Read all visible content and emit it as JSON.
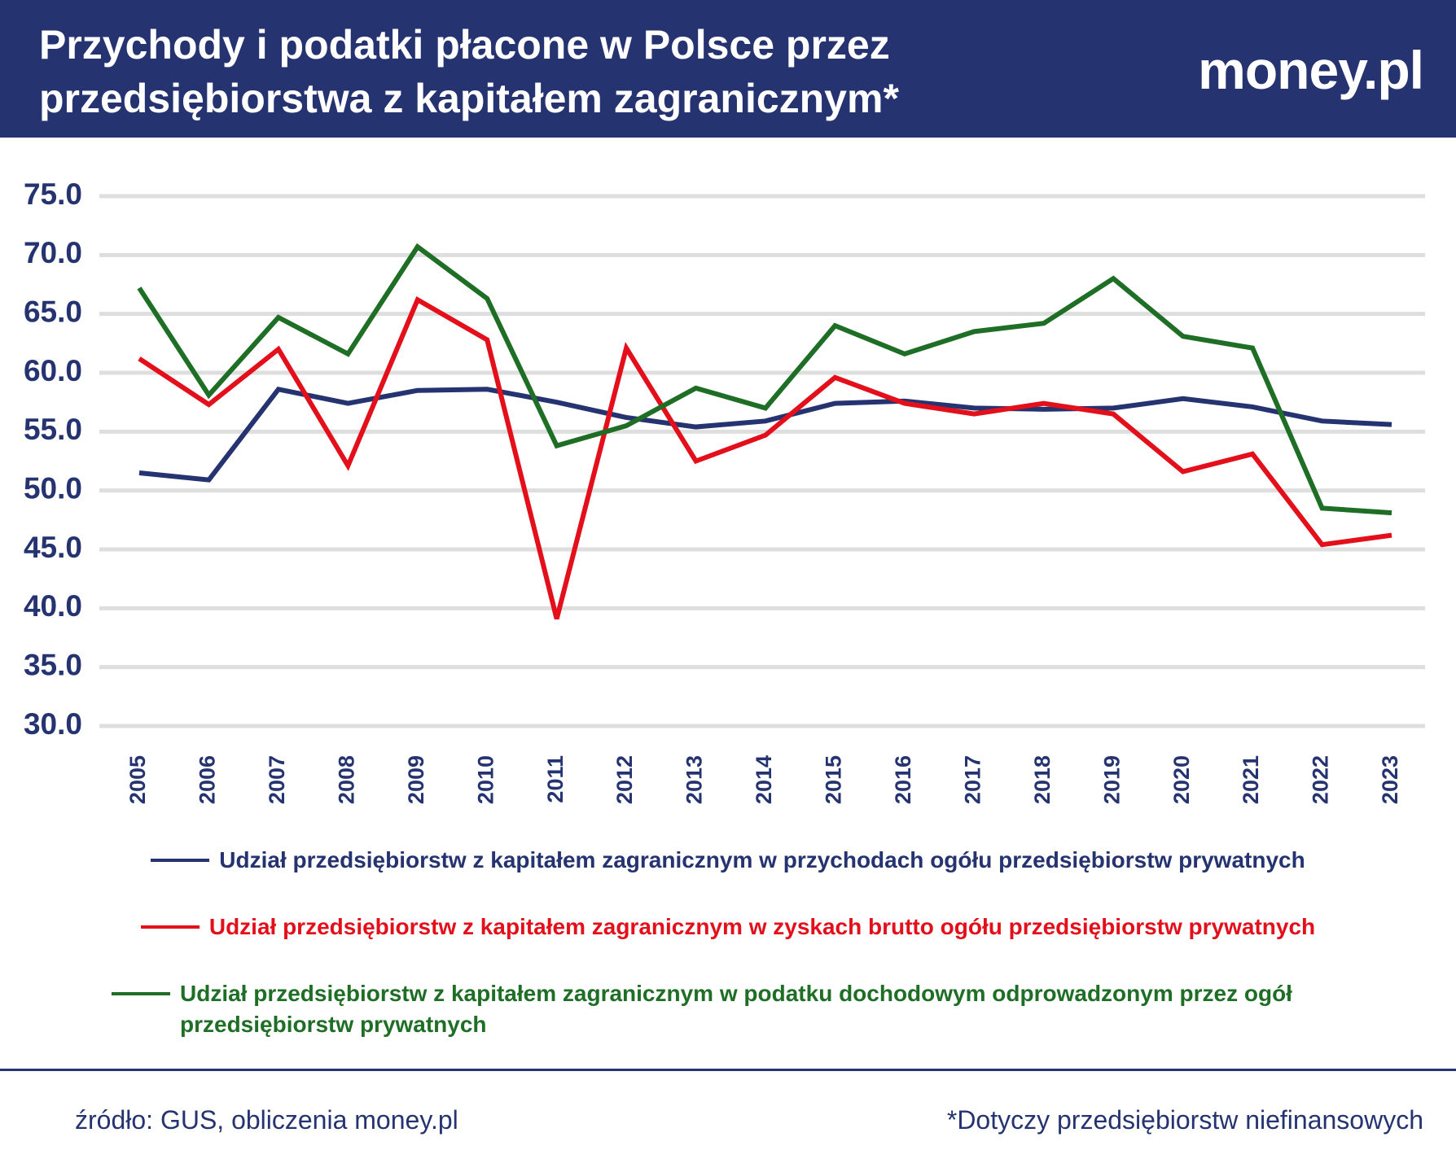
{
  "header": {
    "title_lines": [
      "Przychody i podatki płacone w Polsce przez",
      "przedsiębiorstwa z kapitałem zagranicznym*"
    ],
    "logo": "money.pl"
  },
  "chart_data": {
    "type": "line",
    "categories": [
      "2005",
      "2006",
      "2007",
      "2008",
      "2009",
      "2010",
      "2011",
      "2012",
      "2013",
      "2014",
      "2015",
      "2016",
      "2017",
      "2018",
      "2019",
      "2020",
      "2021",
      "2022",
      "2023"
    ],
    "series": [
      {
        "name": "Udział przedsiębiorstw z kapitałem zagranicznym w przychodach ogółu przedsiębiorstw prywatnych",
        "color": "#253370",
        "values": [
          51.5,
          50.9,
          58.6,
          57.4,
          58.5,
          58.6,
          57.5,
          56.2,
          55.4,
          55.9,
          57.4,
          57.6,
          57.0,
          56.9,
          57.0,
          57.8,
          57.1,
          55.9,
          55.6
        ]
      },
      {
        "name": "Udział przedsiębiorstw z kapitałem zagranicznym w zyskach brutto ogółu przedsiębiorstw prywatnych",
        "color": "#e3101b",
        "values": [
          61.2,
          57.3,
          62.0,
          52.1,
          66.2,
          62.8,
          39.1,
          62.1,
          52.5,
          54.7,
          59.6,
          57.4,
          56.5,
          57.4,
          56.5,
          51.6,
          53.1,
          45.4,
          46.2
        ]
      },
      {
        "name": "Udział przedsiębiorstw z kapitałem zagranicznym w podatku dochodowym odprowadzonym przez ogół przedsiębiorstw prywatnych",
        "color": "#1e6e25",
        "values": [
          67.2,
          58.1,
          64.7,
          61.6,
          70.7,
          66.3,
          53.8,
          55.5,
          58.7,
          57.0,
          64.0,
          61.6,
          63.5,
          64.2,
          68.0,
          63.1,
          62.1,
          48.5,
          48.1
        ]
      }
    ],
    "ylim": [
      30,
      75
    ],
    "yticks": [
      {
        "value": 30,
        "label": "30.0"
      },
      {
        "value": 35,
        "label": "35.0"
      },
      {
        "value": 40,
        "label": "40.0"
      },
      {
        "value": 45,
        "label": "45.0"
      },
      {
        "value": 50,
        "label": "50.0"
      },
      {
        "value": 55,
        "label": "55.0"
      },
      {
        "value": 60,
        "label": "60.0"
      },
      {
        "value": 65,
        "label": "65.0"
      },
      {
        "value": 70,
        "label": "70.0"
      },
      {
        "value": 75,
        "label": "75.0"
      }
    ],
    "grid": true
  },
  "footer": {
    "source": "źródło: GUS, obliczenia money.pl",
    "note": "*Dotyczy przedsiębiorstw niefinansowych"
  }
}
